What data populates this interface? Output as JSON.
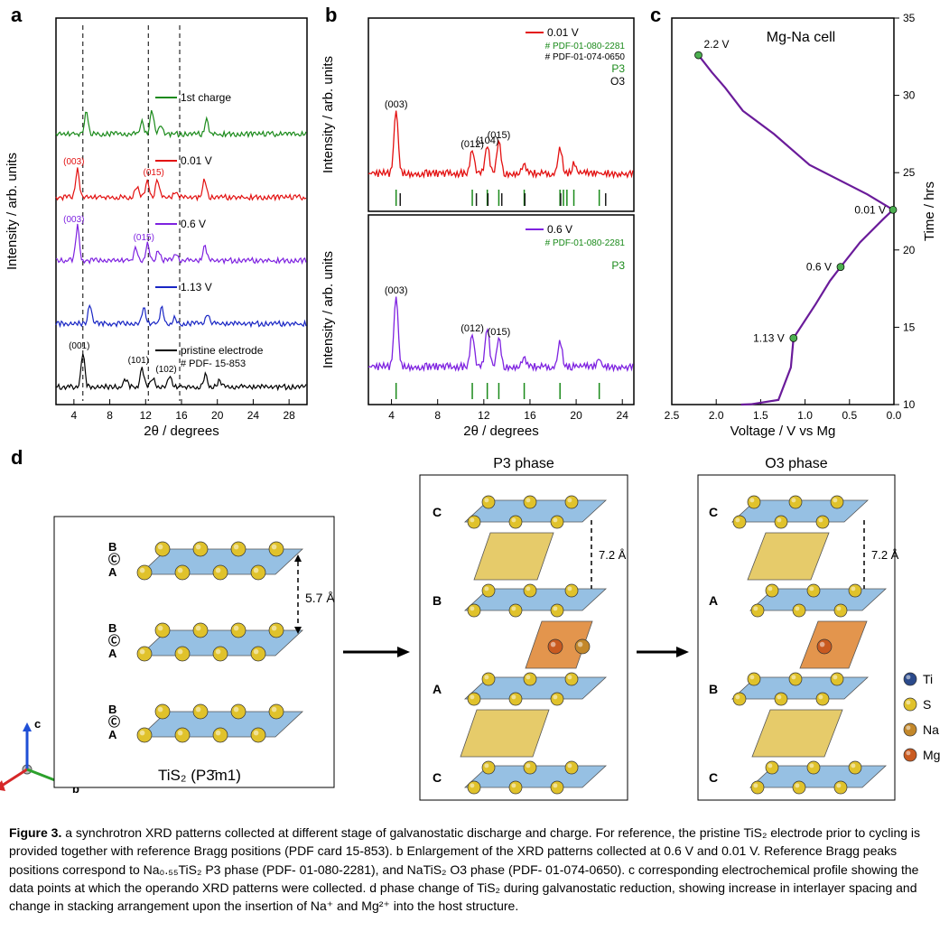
{
  "panels": {
    "a": {
      "label": "a",
      "xlabel": "2θ / degrees",
      "ylabel": "Intensity / arb. units",
      "xlim": [
        2,
        30
      ],
      "xtick_step": 4,
      "background_color": "#ffffff",
      "axis_fontsize": 15,
      "tick_fontsize": 12,
      "dash_lines_x": [
        5.0,
        12.3,
        15.8
      ],
      "traces": [
        {
          "label": "pristine electrode",
          "pdf": "# PDF- 15-853",
          "color": "#000000",
          "peaks": [
            {
              "x": 5.0,
              "h": 38,
              "tag": "(001)"
            },
            {
              "x": 9.8,
              "h": 8
            },
            {
              "x": 11.6,
              "h": 22,
              "tag": "(101)"
            },
            {
              "x": 12.8,
              "h": 10
            },
            {
              "x": 14.7,
              "h": 12,
              "tag": "(102)"
            },
            {
              "x": 18.7,
              "h": 14
            },
            {
              "x": 20.2,
              "h": 6
            }
          ],
          "yoff": 0
        },
        {
          "label": "1.13 V",
          "color": "#1926c4",
          "peaks": [
            {
              "x": 5.8,
              "h": 22
            },
            {
              "x": 11.8,
              "h": 18
            },
            {
              "x": 13.8,
              "h": 18
            },
            {
              "x": 15.2,
              "h": 6
            },
            {
              "x": 18.9,
              "h": 12
            }
          ],
          "yoff": 70
        },
        {
          "label": "0.6 V",
          "color": "#7e22e0",
          "peaks": [
            {
              "x": 4.4,
              "h": 38,
              "tag": "(003)"
            },
            {
              "x": 10.9,
              "h": 14
            },
            {
              "x": 12.2,
              "h": 18,
              "tag": "(015)"
            },
            {
              "x": 13.4,
              "h": 12
            },
            {
              "x": 15.4,
              "h": 8
            },
            {
              "x": 18.6,
              "h": 16
            }
          ],
          "yoff": 140
        },
        {
          "label": "0.01 V",
          "color": "#e31010",
          "peaks": [
            {
              "x": 4.4,
              "h": 32,
              "tag": "(003)"
            },
            {
              "x": 11.0,
              "h": 12
            },
            {
              "x": 12.2,
              "h": 18
            },
            {
              "x": 13.3,
              "h": 20,
              "tag": "(015)"
            },
            {
              "x": 15.3,
              "h": 6
            },
            {
              "x": 18.6,
              "h": 20
            }
          ],
          "yoff": 210
        },
        {
          "label": "1st charge",
          "color": "#1a8a1a",
          "peaks": [
            {
              "x": 5.4,
              "h": 26
            },
            {
              "x": 11.6,
              "h": 14
            },
            {
              "x": 12.7,
              "h": 26
            },
            {
              "x": 13.7,
              "h": 10
            },
            {
              "x": 18.8,
              "h": 16
            }
          ],
          "yoff": 280
        }
      ]
    },
    "b": {
      "label": "b",
      "xlabel": "2θ / degrees",
      "ylabel": "Intensity / arb. units",
      "xlim": [
        2,
        25
      ],
      "xticks": [
        4,
        8,
        12,
        16,
        20,
        24
      ],
      "top": {
        "label": "0.01 V",
        "color": "#e31010",
        "pdf1": "# PDF-01-080-2281",
        "pdf2": "# PDF-01-074-0650",
        "phase1": "P3",
        "phase1_color": "#1a8a1a",
        "phase2": "O3",
        "phase2_color": "#000000",
        "peaks": [
          {
            "x": 4.4,
            "h": 70,
            "tag": "(003)"
          },
          {
            "x": 11.0,
            "h": 26,
            "tag": "(012)"
          },
          {
            "x": 12.3,
            "h": 30,
            "tag": "(104)"
          },
          {
            "x": 13.3,
            "h": 36,
            "tag": "(015)"
          },
          {
            "x": 15.5,
            "h": 10
          },
          {
            "x": 18.6,
            "h": 30
          },
          {
            "x": 19.8,
            "h": 10
          }
        ],
        "ref1_ticks_x": [
          4.4,
          11.0,
          12.3,
          13.3,
          15.5,
          18.6,
          18.9,
          19.2,
          19.8,
          22.0
        ],
        "ref1_color": "#1a8a1a",
        "ref2_ticks_x": [
          4.6,
          11.2,
          12.2,
          13.4,
          15.4,
          18.5,
          22.4
        ],
        "ref2_color": "#1a1a1a"
      },
      "bottom": {
        "label": "0.6 V",
        "color": "#7e22e0",
        "pdf1": "# PDF-01-080-2281",
        "phase1": "P3",
        "phase1_color": "#1a8a1a",
        "peaks": [
          {
            "x": 4.4,
            "h": 78,
            "tag": "(003)"
          },
          {
            "x": 11.0,
            "h": 36,
            "tag": "(012)"
          },
          {
            "x": 12.3,
            "h": 42
          },
          {
            "x": 13.3,
            "h": 32,
            "tag": "(015)"
          },
          {
            "x": 15.5,
            "h": 10
          },
          {
            "x": 18.6,
            "h": 30
          },
          {
            "x": 22.0,
            "h": 8
          }
        ],
        "ref1_ticks_x": [
          4.4,
          11.0,
          12.3,
          13.3,
          15.5,
          18.6,
          22.0
        ],
        "ref1_color": "#1a8a1a"
      }
    },
    "c": {
      "label": "c",
      "title": "Mg-Na cell",
      "xlabel": "Voltage / V vs Mg",
      "ylabel": "Time / hrs",
      "xlim": [
        2.5,
        0.0
      ],
      "xtick_step": 0.5,
      "ylim": [
        10,
        35
      ],
      "ytick_step": 5,
      "ylabel_side": "right",
      "curve_color": "#6a1b9a",
      "marker_color": "#4caf50",
      "points": [
        {
          "v": 1.72,
          "t": 10.0
        },
        {
          "v": 1.61,
          "t": 10.02
        },
        {
          "v": 1.3,
          "t": 10.3
        },
        {
          "v": 1.16,
          "t": 12.4
        },
        {
          "v": 1.13,
          "t": 14.3,
          "dot": true,
          "label": "1.13 V"
        },
        {
          "v": 0.88,
          "t": 16.5
        },
        {
          "v": 0.72,
          "t": 18.0
        },
        {
          "v": 0.6,
          "t": 18.9,
          "dot": true,
          "label": "0.6 V"
        },
        {
          "v": 0.38,
          "t": 20.5
        },
        {
          "v": 0.12,
          "t": 22.0
        },
        {
          "v": 0.01,
          "t": 22.6,
          "dot": true,
          "label": "0.01 V"
        },
        {
          "v": 0.3,
          "t": 23.6
        },
        {
          "v": 0.95,
          "t": 25.5
        },
        {
          "v": 1.35,
          "t": 27.5
        },
        {
          "v": 1.7,
          "t": 29.0
        },
        {
          "v": 1.9,
          "t": 30.5
        },
        {
          "v": 2.05,
          "t": 31.5
        },
        {
          "v": 2.2,
          "t": 32.6,
          "dot": true,
          "label": "2.2 V"
        }
      ]
    },
    "d": {
      "label": "d",
      "tis2": {
        "title": "TiS₂ (P3̄m1)",
        "spacing": "5.7 Å",
        "stacking_labels": [
          "B",
          "Ⓒ",
          "A"
        ]
      },
      "p3": {
        "title": "P3 phase",
        "spacing": "7.2 Å",
        "stacking": [
          "C",
          "B",
          "A",
          "C"
        ]
      },
      "o3": {
        "title": "O3 phase",
        "spacing": "7.2 Å",
        "stacking": [
          "C",
          "A",
          "B",
          "C"
        ]
      },
      "axes": {
        "a_color": "#d62728",
        "b_color": "#2ca02c",
        "c_color": "#1f4fd6"
      },
      "legend": [
        {
          "name": "Ti",
          "color": "#2b4a8b"
        },
        {
          "name": "S",
          "color": "#e0c22b"
        },
        {
          "name": "Na",
          "color": "#c3882b"
        },
        {
          "name": "Mg",
          "color": "#c95a20"
        }
      ]
    }
  },
  "caption": {
    "prefix": "Figure 3. ",
    "text": "a synchrotron XRD patterns collected at different stage of galvanostatic discharge and charge. For reference, the pristine TiS₂ electrode prior to cycling is provided together with reference Bragg positions (PDF card 15-853). b Enlargement of the XRD patterns collected at 0.6 V and 0.01 V. Reference Bragg peaks positions correspond to Na₀.₅₅TiS₂ P3 phase (PDF- 01-080-2281), and NaTiS₂ O3 phase (PDF- 01-074-0650). c corresponding electrochemical profile showing the data points at which the operando XRD patterns were collected. d phase change of TiS₂ during galvanostatic reduction, showing increase in interlayer spacing and change in stacking arrangement upon the insertion of Na⁺ and Mg²⁺ into the host structure."
  }
}
